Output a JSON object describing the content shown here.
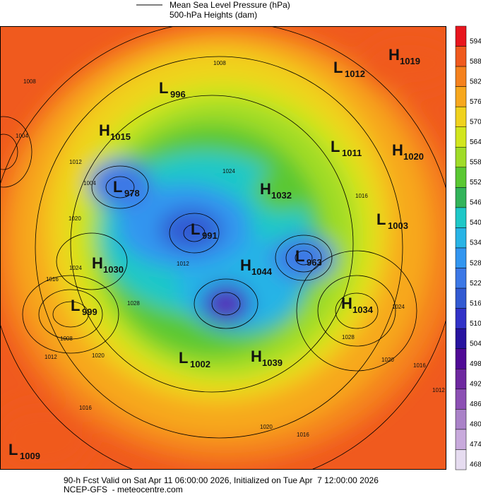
{
  "legend": {
    "line_label": "Mean Sea Level Pressure (hPa)",
    "fill_label": "500-hPa Heights (dam)"
  },
  "pressure_centers": [
    {
      "type": "H",
      "value": "1019"
    },
    {
      "type": "L",
      "value": "1012"
    },
    {
      "type": "L",
      "value": "996"
    },
    {
      "type": "H",
      "value": "1015"
    },
    {
      "type": "L",
      "value": "1011"
    },
    {
      "type": "H",
      "value": "1020"
    },
    {
      "type": "L",
      "value": "978"
    },
    {
      "type": "H",
      "value": "1032"
    },
    {
      "type": "L",
      "value": "1003"
    },
    {
      "type": "L",
      "value": "991"
    },
    {
      "type": "H",
      "value": "1030"
    },
    {
      "type": "H",
      "value": "1044"
    },
    {
      "type": "L",
      "value": "963"
    },
    {
      "type": "L",
      "value": "999"
    },
    {
      "type": "H",
      "value": "1034"
    },
    {
      "type": "L",
      "value": "1002"
    },
    {
      "type": "H",
      "value": "1039"
    },
    {
      "type": "L",
      "value": "1009"
    }
  ],
  "contour_labels": [
    "1008",
    "1004",
    "1012",
    "1004",
    "1020",
    "1024",
    "1016",
    "1008",
    "1012",
    "1020",
    "1028",
    "1024",
    "1012",
    "1016",
    "1028",
    "1020",
    "1016",
    "1012",
    "1016",
    "1020",
    "1024",
    "1008",
    "1016"
  ],
  "colorbar": {
    "levels": [
      {
        "value": "594",
        "color": "#e8161e"
      },
      {
        "value": "588",
        "color": "#f05a1e"
      },
      {
        "value": "582",
        "color": "#f5821e"
      },
      {
        "value": "576",
        "color": "#f7a81e"
      },
      {
        "value": "570",
        "color": "#f0d21e"
      },
      {
        "value": "564",
        "color": "#d2e61e"
      },
      {
        "value": "558",
        "color": "#a0dc28"
      },
      {
        "value": "552",
        "color": "#5ac832"
      },
      {
        "value": "546",
        "color": "#32b45a"
      },
      {
        "value": "540",
        "color": "#1ec8c8"
      },
      {
        "value": "534",
        "color": "#28b4e6"
      },
      {
        "value": "528",
        "color": "#3296f0"
      },
      {
        "value": "522",
        "color": "#3c78e6"
      },
      {
        "value": "516",
        "color": "#325ad2"
      },
      {
        "value": "510",
        "color": "#3232c8"
      },
      {
        "value": "504",
        "color": "#2814a0"
      },
      {
        "value": "498",
        "color": "#500a96"
      },
      {
        "value": "492",
        "color": "#6e28a0"
      },
      {
        "value": "486",
        "color": "#8c50b4"
      },
      {
        "value": "480",
        "color": "#aa82c8"
      },
      {
        "value": "474",
        "color": "#c8aadc"
      },
      {
        "value": "468",
        "color": "#e6dcf0"
      }
    ]
  },
  "footer": {
    "line1": "90-h Fcst Valid on Sat Apr 11 06:00:00 2026, Initialized on Tue Apr  7 12:00:00 2026",
    "line2": "NCEP-GFS  - meteocentre.com"
  }
}
